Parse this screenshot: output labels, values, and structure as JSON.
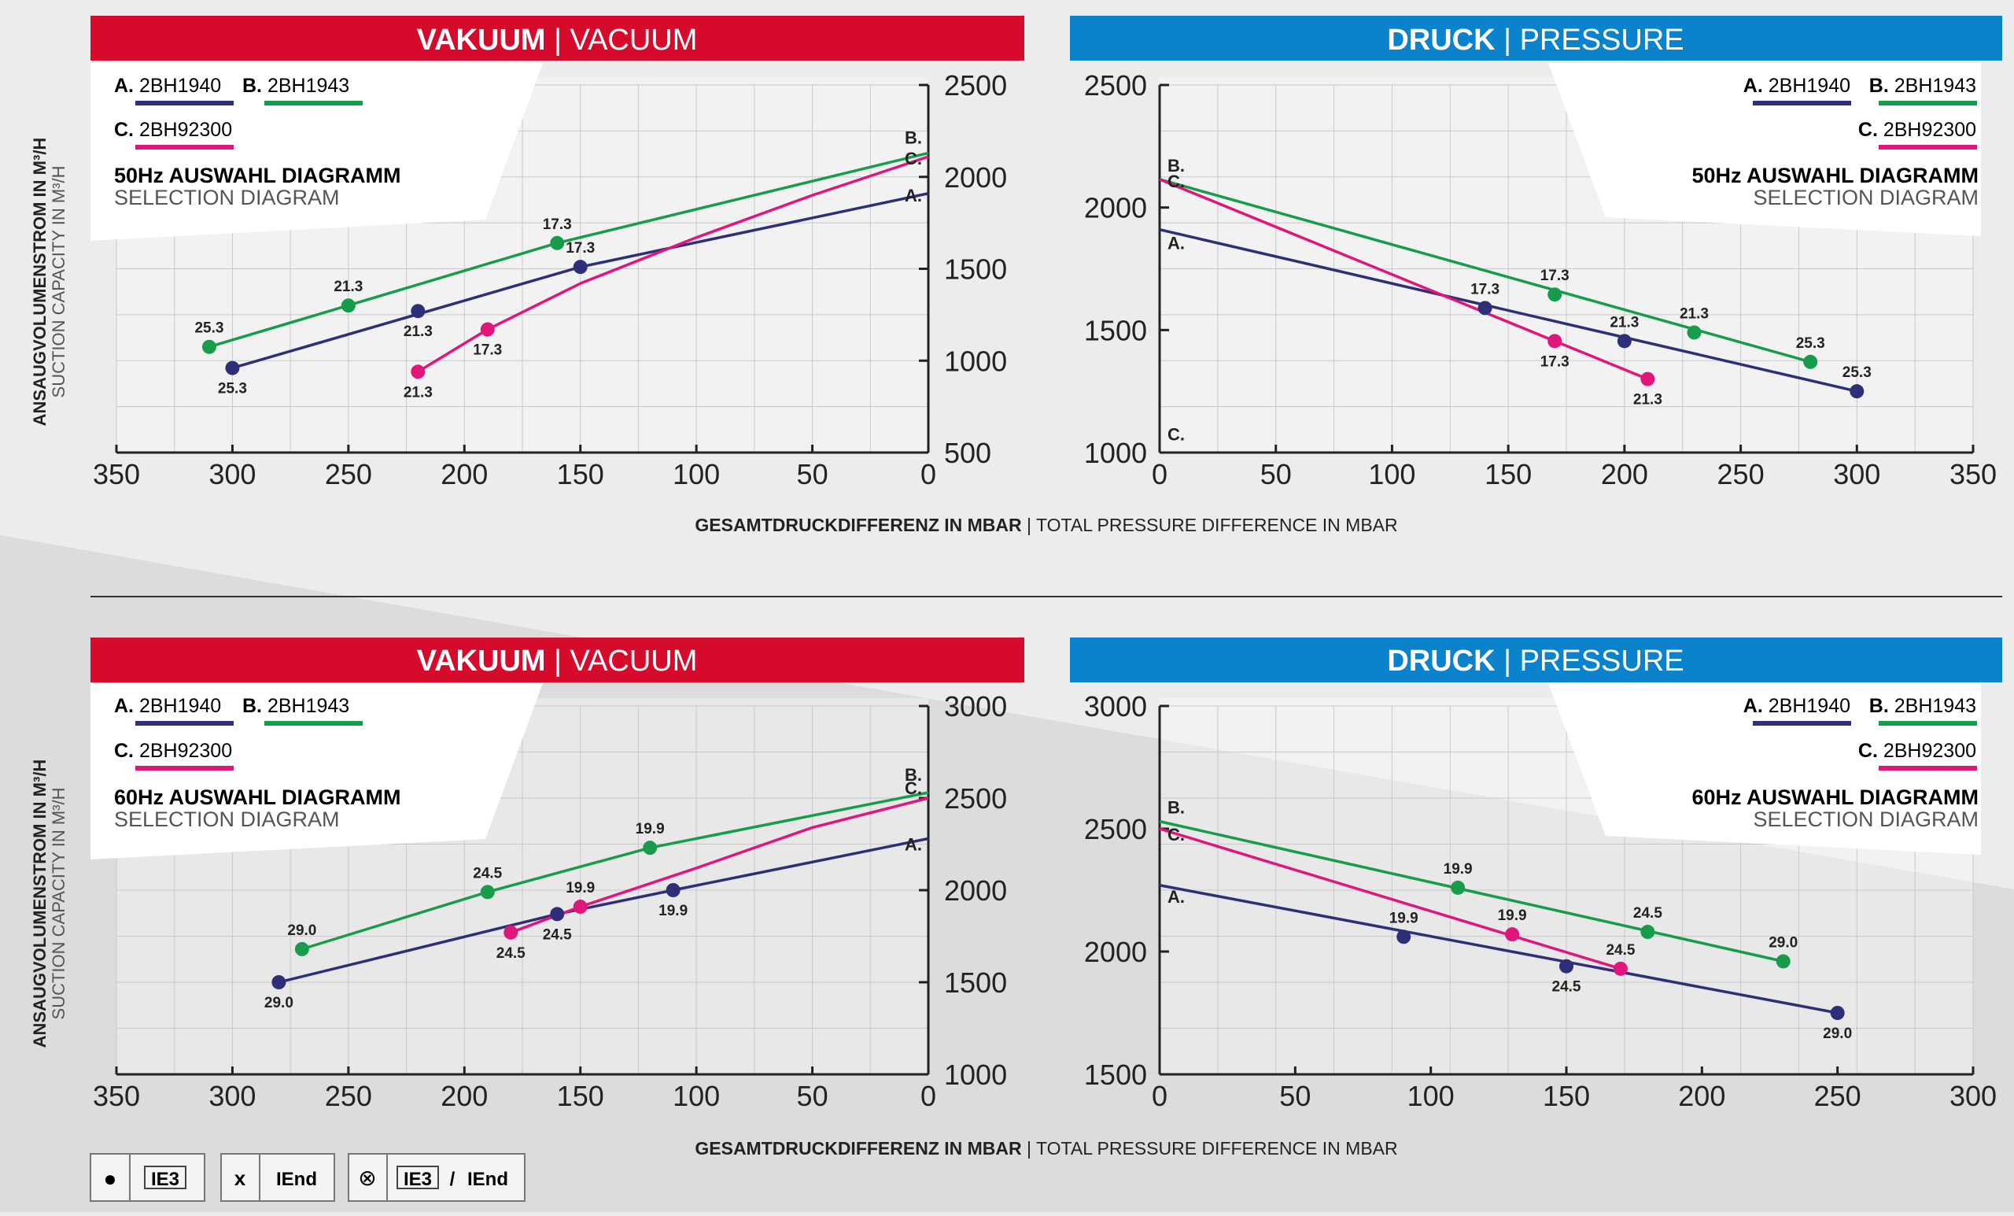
{
  "y_axis_label": {
    "bold": "ANSAUGVOLUMENSTROM IN M³/H",
    "light": "SUCTION CAPACITY IN M³/H"
  },
  "x_axis_label": {
    "bold": "GESAMTDRUCKDIFFERENZ IN MBAR",
    "light": "TOTAL PRESSURE DIFFERENCE IN MBAR"
  },
  "vacuum_header": {
    "bold": "VAKUUM",
    "light": "VACUUM"
  },
  "pressure_header": {
    "bold": "DRUCK",
    "light": "PRESSURE"
  },
  "legend": {
    "a_letter": "A.",
    "a_model": "2BH1940",
    "b_letter": "B.",
    "b_model": "2BH1943",
    "c_letter": "C.",
    "c_model": "2BH92300"
  },
  "diagram": {
    "hz50_title": "50Hz AUSWAHL DIAGRAMM",
    "hz60_title": "60Hz AUSWAHL DIAGRAMM",
    "subtitle": "SELECTION DIAGRAM"
  },
  "footer_legend": {
    "dot_symbol": "●",
    "dot_label": "IE3",
    "x_symbol": "x",
    "x_label": "IEnd",
    "ox_symbol": "⊗",
    "ox_label1": "IE3",
    "ox_sep": "/",
    "ox_label2": "IEnd"
  },
  "colors": {
    "a": "#2e2f78",
    "b": "#169c4b",
    "c": "#e0177a",
    "vacuum": "#d60b2b",
    "pressure": "#0a82cc"
  },
  "chart_data": [
    {
      "id": "vac50",
      "type": "line",
      "title": "VAKUUM | VACUUM - 50Hz AUSWAHL DIAGRAMM",
      "xlabel": "GESAMTDRUCKDIFFERENZ IN MBAR",
      "ylabel": "ANSAUGVOLUMENSTROM IN M³/H",
      "xlim": [
        350,
        0
      ],
      "ylim": [
        500,
        2500
      ],
      "xticks": [
        350,
        300,
        250,
        200,
        150,
        100,
        50,
        0
      ],
      "yticks": [
        500,
        1000,
        1500,
        2000,
        2500
      ],
      "series": [
        {
          "name": "A. 2BH1940",
          "key": "a",
          "x": [
            300,
            150,
            0
          ],
          "y": [
            960,
            1510,
            1910
          ],
          "markers": [
            {
              "x": 300,
              "y": 960,
              "label": "25.3",
              "pos": "below"
            },
            {
              "x": 220,
              "y": 1270,
              "label": "21.3",
              "pos": "below"
            },
            {
              "x": 150,
              "y": 1510,
              "label": "17.3",
              "pos": "above"
            }
          ]
        },
        {
          "name": "B. 2BH1943",
          "key": "b",
          "x": [
            310,
            160,
            0
          ],
          "y": [
            1075,
            1640,
            2130
          ],
          "markers": [
            {
              "x": 310,
              "y": 1075,
              "label": "25.3",
              "pos": "above"
            },
            {
              "x": 250,
              "y": 1300,
              "label": "21.3",
              "pos": "above"
            },
            {
              "x": 160,
              "y": 1640,
              "label": "17.3",
              "pos": "above"
            }
          ]
        },
        {
          "name": "C. 2BH92300",
          "key": "c",
          "x": [
            220,
            190,
            150,
            100,
            50,
            0
          ],
          "y": [
            940,
            1170,
            1420,
            1670,
            1900,
            2110
          ],
          "markers": [
            {
              "x": 220,
              "y": 940,
              "label": "21.3",
              "pos": "below"
            },
            {
              "x": 190,
              "y": 1170,
              "label": "17.3",
              "pos": "below"
            }
          ]
        }
      ],
      "end_labels": {
        "a": "A.",
        "b": "B.",
        "c": "C."
      }
    },
    {
      "id": "prs50",
      "type": "line",
      "title": "DRUCK | PRESSURE - 50Hz AUSWAHL DIAGRAMM",
      "xlabel": "GESAMTDRUCKDIFFERENZ IN MBAR",
      "ylabel": "ANSAUGVOLUMENSTROM IN M³/H",
      "xlim": [
        0,
        350
      ],
      "ylim": [
        1000,
        2500
      ],
      "xticks": [
        0,
        50,
        100,
        150,
        200,
        250,
        300,
        350
      ],
      "yticks": [
        1000,
        1500,
        2000,
        2500
      ],
      "series": [
        {
          "name": "A. 2BH1940",
          "key": "a",
          "x": [
            0,
            300
          ],
          "y": [
            1910,
            1250
          ],
          "markers": [
            {
              "x": 140,
              "y": 1590,
              "label": "17.3",
              "pos": "above"
            },
            {
              "x": 200,
              "y": 1455,
              "label": "21.3",
              "pos": "above"
            },
            {
              "x": 300,
              "y": 1250,
              "label": "25.3",
              "pos": "above"
            }
          ]
        },
        {
          "name": "B. 2BH1943",
          "key": "b",
          "x": [
            0,
            280
          ],
          "y": [
            2115,
            1370
          ],
          "markers": [
            {
              "x": 170,
              "y": 1645,
              "label": "17.3",
              "pos": "above"
            },
            {
              "x": 230,
              "y": 1490,
              "label": "21.3",
              "pos": "above"
            },
            {
              "x": 280,
              "y": 1370,
              "label": "25.3",
              "pos": "above"
            }
          ]
        },
        {
          "name": "C. 2BH92300",
          "key": "c",
          "x": [
            0,
            170,
            210
          ],
          "y": [
            2115,
            1455,
            1300
          ],
          "markers": [
            {
              "x": 170,
              "y": 1455,
              "label": "17.3",
              "pos": "below"
            },
            {
              "x": 210,
              "y": 1300,
              "label": "21.3",
              "pos": "below"
            }
          ]
        }
      ],
      "end_labels": {
        "b": "B.",
        "c": "C.",
        "a": "A.",
        "c2": "C."
      }
    },
    {
      "id": "vac60",
      "type": "line",
      "title": "VAKUUM | VACUUM - 60Hz AUSWAHL DIAGRAMM",
      "xlabel": "GESAMTDRUCKDIFFERENZ IN MBAR",
      "ylabel": "ANSAUGVOLUMENSTROM IN M³/H",
      "xlim": [
        350,
        0
      ],
      "ylim": [
        1000,
        3000
      ],
      "xticks": [
        350,
        300,
        250,
        200,
        150,
        100,
        50,
        0
      ],
      "yticks": [
        1000,
        1500,
        2000,
        2500,
        3000
      ],
      "series": [
        {
          "name": "A. 2BH1940",
          "key": "a",
          "x": [
            280,
            160,
            110,
            0
          ],
          "y": [
            1500,
            1870,
            2000,
            2280
          ],
          "markers": [
            {
              "x": 280,
              "y": 1500,
              "label": "29.0",
              "pos": "below"
            },
            {
              "x": 160,
              "y": 1870,
              "label": "24.5",
              "pos": "below"
            },
            {
              "x": 110,
              "y": 2000,
              "label": "19.9",
              "pos": "below"
            }
          ]
        },
        {
          "name": "B. 2BH1943",
          "key": "b",
          "x": [
            270,
            190,
            120,
            0
          ],
          "y": [
            1680,
            1990,
            2230,
            2530
          ],
          "markers": [
            {
              "x": 270,
              "y": 1680,
              "label": "29.0",
              "pos": "above"
            },
            {
              "x": 190,
              "y": 1990,
              "label": "24.5",
              "pos": "above"
            },
            {
              "x": 120,
              "y": 2230,
              "label": "19.9",
              "pos": "above"
            }
          ]
        },
        {
          "name": "C. 2BH92300",
          "key": "c",
          "x": [
            180,
            150,
            100,
            50,
            0
          ],
          "y": [
            1770,
            1910,
            2120,
            2340,
            2500
          ],
          "markers": [
            {
              "x": 180,
              "y": 1770,
              "label": "24.5",
              "pos": "below"
            },
            {
              "x": 150,
              "y": 1910,
              "label": "19.9",
              "pos": "above"
            }
          ]
        }
      ],
      "end_labels": {
        "a": "A.",
        "b": "B.",
        "c": "C."
      }
    },
    {
      "id": "prs60",
      "type": "line",
      "title": "DRUCK | PRESSURE - 60Hz AUSWAHL DIAGRAMM",
      "xlabel": "GESAMTDRUCKDIFFERENZ IN MBAR",
      "ylabel": "ANSAUGVOLUMENSTROM IN M³/H",
      "xlim": [
        0,
        300
      ],
      "ylim": [
        1500,
        3000
      ],
      "xticks": [
        0,
        50,
        100,
        150,
        200,
        250,
        300
      ],
      "yticks": [
        1500,
        2000,
        2500,
        3000
      ],
      "series": [
        {
          "name": "A. 2BH1940",
          "key": "a",
          "x": [
            0,
            250
          ],
          "y": [
            2270,
            1750
          ],
          "markers": [
            {
              "x": 90,
              "y": 2060,
              "label": "19.9",
              "pos": "above"
            },
            {
              "x": 150,
              "y": 1940,
              "label": "24.5",
              "pos": "below"
            },
            {
              "x": 250,
              "y": 1750,
              "label": "29.0",
              "pos": "below"
            }
          ]
        },
        {
          "name": "B. 2BH1943",
          "key": "b",
          "x": [
            0,
            230
          ],
          "y": [
            2530,
            1960
          ],
          "markers": [
            {
              "x": 110,
              "y": 2260,
              "label": "19.9",
              "pos": "above"
            },
            {
              "x": 180,
              "y": 2080,
              "label": "24.5",
              "pos": "above"
            },
            {
              "x": 230,
              "y": 1960,
              "label": "29.0",
              "pos": "above"
            }
          ]
        },
        {
          "name": "C. 2BH92300",
          "key": "c",
          "x": [
            0,
            170
          ],
          "y": [
            2500,
            1930
          ],
          "markers": [
            {
              "x": 130,
              "y": 2070,
              "label": "19.9",
              "pos": "above"
            },
            {
              "x": 170,
              "y": 1930,
              "label": "24.5",
              "pos": "above"
            }
          ]
        }
      ],
      "end_labels": {
        "b": "B.",
        "c": "C.",
        "a": "A."
      }
    }
  ]
}
